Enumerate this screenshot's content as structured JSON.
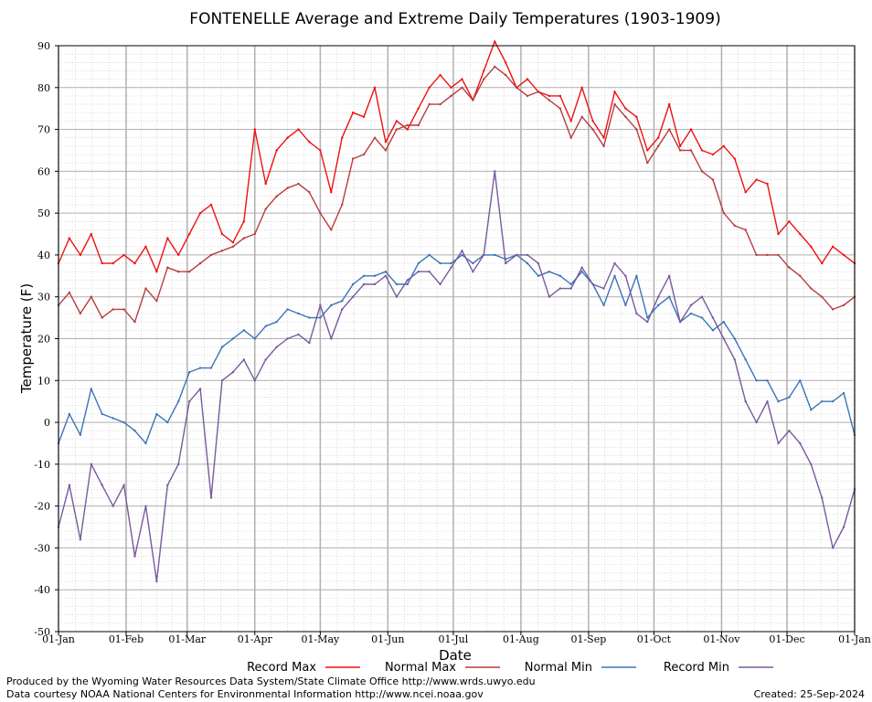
{
  "chart_data": {
    "type": "line",
    "title": "FONTENELLE Average and Extreme Daily Temperatures (1903-1909)",
    "xlabel": "Date",
    "ylabel": "Temperature (F)",
    "ylim": [
      -50,
      90
    ],
    "yticks": [
      -50,
      -40,
      -30,
      -20,
      -10,
      0,
      10,
      20,
      30,
      40,
      50,
      60,
      70,
      80,
      90
    ],
    "x_tick_labels": [
      "01-Jan",
      "01-Feb",
      "01-Mar",
      "01-Apr",
      "01-May",
      "01-Jun",
      "01-Jul",
      "01-Aug",
      "01-Sep",
      "01-Oct",
      "01-Nov",
      "01-Dec",
      "01-Jan"
    ],
    "x_tick_days": [
      0,
      31,
      59,
      90,
      120,
      151,
      181,
      212,
      243,
      273,
      304,
      334,
      365
    ],
    "grid": true,
    "legend_placement": "bottom",
    "series": [
      {
        "name": "Record Max",
        "color": "#ee1111",
        "x": [
          0,
          5,
          10,
          15,
          20,
          25,
          30,
          35,
          40,
          45,
          50,
          55,
          60,
          65,
          70,
          75,
          80,
          85,
          90,
          95,
          100,
          105,
          110,
          115,
          120,
          125,
          130,
          135,
          140,
          145,
          150,
          155,
          160,
          165,
          170,
          175,
          180,
          185,
          190,
          195,
          200,
          205,
          210,
          215,
          220,
          225,
          230,
          235,
          240,
          245,
          250,
          255,
          260,
          265,
          270,
          275,
          280,
          285,
          290,
          295,
          300,
          305,
          310,
          315,
          320,
          325,
          330,
          335,
          340,
          345,
          350,
          355,
          360,
          365
        ],
        "values": [
          38,
          44,
          40,
          45,
          38,
          38,
          40,
          38,
          42,
          36,
          44,
          40,
          45,
          50,
          52,
          45,
          43,
          48,
          70,
          57,
          65,
          68,
          70,
          67,
          65,
          55,
          68,
          74,
          73,
          80,
          67,
          72,
          70,
          75,
          80,
          83,
          80,
          82,
          77,
          84,
          91,
          86,
          80,
          82,
          79,
          78,
          78,
          72,
          80,
          72,
          68,
          79,
          75,
          73,
          65,
          68,
          76,
          66,
          70,
          65,
          64,
          66,
          63,
          55,
          58,
          57,
          45,
          48,
          45,
          42,
          38,
          42,
          40,
          38
        ]
      },
      {
        "name": "Normal Max",
        "color": "#b83c3c",
        "x": [
          0,
          5,
          10,
          15,
          20,
          25,
          30,
          35,
          40,
          45,
          50,
          55,
          60,
          65,
          70,
          75,
          80,
          85,
          90,
          95,
          100,
          105,
          110,
          115,
          120,
          125,
          130,
          135,
          140,
          145,
          150,
          155,
          160,
          165,
          170,
          175,
          180,
          185,
          190,
          195,
          200,
          205,
          210,
          215,
          220,
          225,
          230,
          235,
          240,
          245,
          250,
          255,
          260,
          265,
          270,
          275,
          280,
          285,
          290,
          295,
          300,
          305,
          310,
          315,
          320,
          325,
          330,
          335,
          340,
          345,
          350,
          355,
          360,
          365
        ],
        "values": [
          28,
          31,
          26,
          30,
          25,
          27,
          27,
          24,
          32,
          29,
          37,
          36,
          36,
          38,
          40,
          41,
          42,
          44,
          45,
          51,
          54,
          56,
          57,
          55,
          50,
          46,
          52,
          63,
          64,
          68,
          65,
          70,
          71,
          71,
          76,
          76,
          78,
          80,
          77,
          82,
          85,
          83,
          80,
          78,
          79,
          77,
          75,
          68,
          73,
          70,
          66,
          76,
          73,
          70,
          62,
          66,
          70,
          65,
          65,
          60,
          58,
          50,
          47,
          46,
          40,
          40,
          40,
          37,
          35,
          32,
          30,
          27,
          28,
          30
        ]
      },
      {
        "name": "Normal Min",
        "color": "#3b74b8",
        "x": [
          0,
          5,
          10,
          15,
          20,
          25,
          30,
          35,
          40,
          45,
          50,
          55,
          60,
          65,
          70,
          75,
          80,
          85,
          90,
          95,
          100,
          105,
          110,
          115,
          120,
          125,
          130,
          135,
          140,
          145,
          150,
          155,
          160,
          165,
          170,
          175,
          180,
          185,
          190,
          195,
          200,
          205,
          210,
          215,
          220,
          225,
          230,
          235,
          240,
          245,
          250,
          255,
          260,
          265,
          270,
          275,
          280,
          285,
          290,
          295,
          300,
          305,
          310,
          315,
          320,
          325,
          330,
          335,
          340,
          345,
          350,
          355,
          360,
          365
        ],
        "values": [
          -5,
          2,
          -3,
          8,
          2,
          1,
          0,
          -2,
          -5,
          2,
          0,
          5,
          12,
          13,
          13,
          18,
          20,
          22,
          20,
          23,
          24,
          27,
          26,
          25,
          25,
          28,
          29,
          33,
          35,
          35,
          36,
          33,
          33,
          38,
          40,
          38,
          38,
          40,
          38,
          40,
          40,
          39,
          40,
          38,
          35,
          36,
          35,
          33,
          36,
          33,
          28,
          35,
          28,
          35,
          25,
          28,
          30,
          24,
          26,
          25,
          22,
          24,
          20,
          15,
          10,
          10,
          5,
          6,
          10,
          3,
          5,
          5,
          7,
          -3
        ]
      },
      {
        "name": "Record Min",
        "color": "#785a9e",
        "x": [
          0,
          5,
          10,
          15,
          20,
          25,
          30,
          35,
          40,
          45,
          50,
          55,
          60,
          65,
          70,
          75,
          80,
          85,
          90,
          95,
          100,
          105,
          110,
          115,
          120,
          125,
          130,
          135,
          140,
          145,
          150,
          155,
          160,
          165,
          170,
          175,
          180,
          185,
          190,
          195,
          200,
          205,
          210,
          215,
          220,
          225,
          230,
          235,
          240,
          245,
          250,
          255,
          260,
          265,
          270,
          275,
          280,
          285,
          290,
          295,
          300,
          305,
          310,
          315,
          320,
          325,
          330,
          335,
          340,
          345,
          350,
          355,
          360,
          365
        ],
        "values": [
          -25,
          -15,
          -28,
          -10,
          -15,
          -20,
          -15,
          -32,
          -20,
          -38,
          -15,
          -10,
          5,
          8,
          -18,
          10,
          12,
          15,
          10,
          15,
          18,
          20,
          21,
          19,
          28,
          20,
          27,
          30,
          33,
          33,
          35,
          30,
          34,
          36,
          36,
          33,
          37,
          41,
          36,
          40,
          60,
          38,
          40,
          40,
          38,
          30,
          32,
          32,
          37,
          33,
          32,
          38,
          35,
          26,
          24,
          30,
          35,
          24,
          28,
          30,
          25,
          20,
          15,
          5,
          0,
          5,
          -5,
          -2,
          -5,
          -10,
          -18,
          -30,
          -25,
          -16
        ]
      }
    ]
  },
  "footer": {
    "produced_by": "Produced by the Wyoming Water Resources Data System/State Climate Office http://www.wrds.uwyo.edu",
    "data_courtesy": "Data courtesy NOAA National Centers for Environmental Information http://www.ncei.noaa.gov",
    "created": "Created:  25-Sep-2024"
  }
}
